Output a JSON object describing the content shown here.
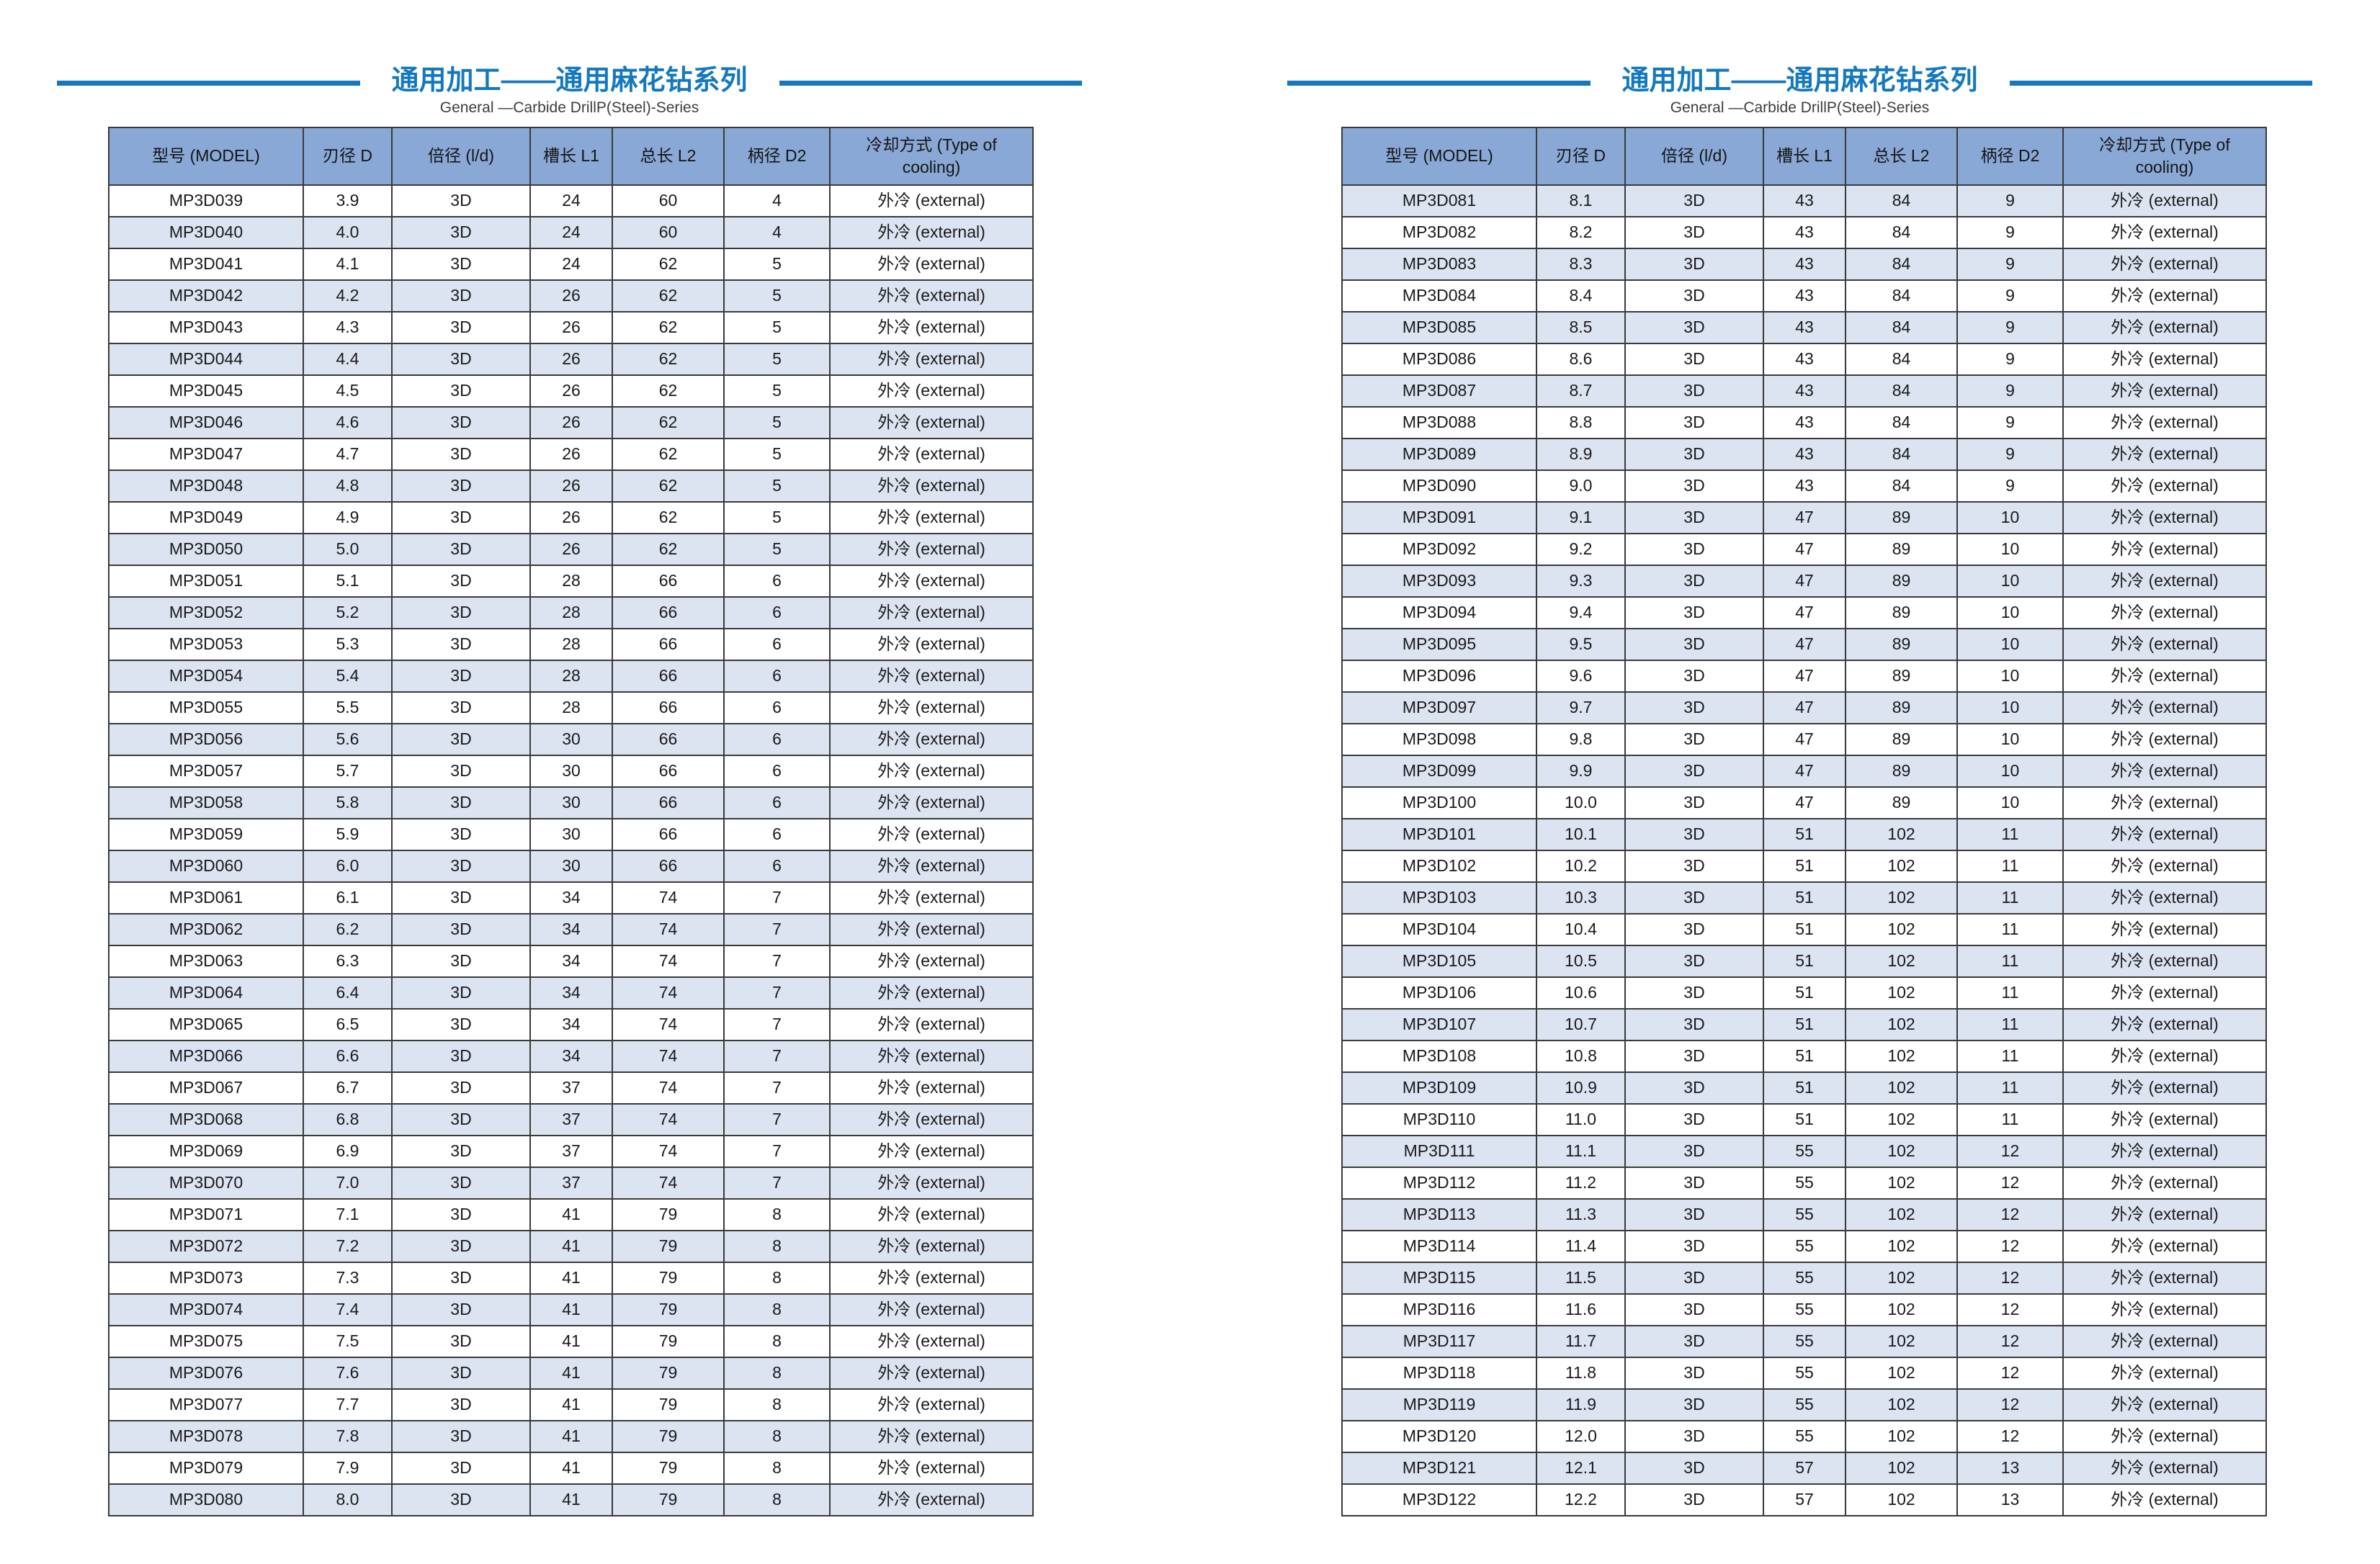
{
  "page": {
    "title": "通用加工——通用麻花钻系列",
    "subtitle": "General —Carbide DrillP(Steel)-Series"
  },
  "colors": {
    "accent_blue": "#1478BE",
    "header_fill": "#89A8D5",
    "stripe_fill": "#DCE3F1",
    "border": "#3a3a3a"
  },
  "table": {
    "headers": [
      "型号 (MODEL)",
      "刃径 D",
      "倍径 (l/d)",
      "槽长 L1",
      "总长 L2",
      "柄径 D2",
      "冷却方式 (Type of cooling)"
    ]
  },
  "left_table": {
    "first_row_shaded": false,
    "rows": [
      [
        "MP3D039",
        "3.9",
        "3D",
        "24",
        "60",
        "4",
        "外冷 (external)"
      ],
      [
        "MP3D040",
        "4.0",
        "3D",
        "24",
        "60",
        "4",
        "外冷 (external)"
      ],
      [
        "MP3D041",
        "4.1",
        "3D",
        "24",
        "62",
        "5",
        "外冷 (external)"
      ],
      [
        "MP3D042",
        "4.2",
        "3D",
        "26",
        "62",
        "5",
        "外冷 (external)"
      ],
      [
        "MP3D043",
        "4.3",
        "3D",
        "26",
        "62",
        "5",
        "外冷 (external)"
      ],
      [
        "MP3D044",
        "4.4",
        "3D",
        "26",
        "62",
        "5",
        "外冷 (external)"
      ],
      [
        "MP3D045",
        "4.5",
        "3D",
        "26",
        "62",
        "5",
        "外冷 (external)"
      ],
      [
        "MP3D046",
        "4.6",
        "3D",
        "26",
        "62",
        "5",
        "外冷 (external)"
      ],
      [
        "MP3D047",
        "4.7",
        "3D",
        "26",
        "62",
        "5",
        "外冷 (external)"
      ],
      [
        "MP3D048",
        "4.8",
        "3D",
        "26",
        "62",
        "5",
        "外冷 (external)"
      ],
      [
        "MP3D049",
        "4.9",
        "3D",
        "26",
        "62",
        "5",
        "外冷 (external)"
      ],
      [
        "MP3D050",
        "5.0",
        "3D",
        "26",
        "62",
        "5",
        "外冷 (external)"
      ],
      [
        "MP3D051",
        "5.1",
        "3D",
        "28",
        "66",
        "6",
        "外冷 (external)"
      ],
      [
        "MP3D052",
        "5.2",
        "3D",
        "28",
        "66",
        "6",
        "外冷 (external)"
      ],
      [
        "MP3D053",
        "5.3",
        "3D",
        "28",
        "66",
        "6",
        "外冷 (external)"
      ],
      [
        "MP3D054",
        "5.4",
        "3D",
        "28",
        "66",
        "6",
        "外冷 (external)"
      ],
      [
        "MP3D055",
        "5.5",
        "3D",
        "28",
        "66",
        "6",
        "外冷 (external)"
      ],
      [
        "MP3D056",
        "5.6",
        "3D",
        "30",
        "66",
        "6",
        "外冷 (external)"
      ],
      [
        "MP3D057",
        "5.7",
        "3D",
        "30",
        "66",
        "6",
        "外冷 (external)"
      ],
      [
        "MP3D058",
        "5.8",
        "3D",
        "30",
        "66",
        "6",
        "外冷 (external)"
      ],
      [
        "MP3D059",
        "5.9",
        "3D",
        "30",
        "66",
        "6",
        "外冷 (external)"
      ],
      [
        "MP3D060",
        "6.0",
        "3D",
        "30",
        "66",
        "6",
        "外冷 (external)"
      ],
      [
        "MP3D061",
        "6.1",
        "3D",
        "34",
        "74",
        "7",
        "外冷 (external)"
      ],
      [
        "MP3D062",
        "6.2",
        "3D",
        "34",
        "74",
        "7",
        "外冷 (external)"
      ],
      [
        "MP3D063",
        "6.3",
        "3D",
        "34",
        "74",
        "7",
        "外冷 (external)"
      ],
      [
        "MP3D064",
        "6.4",
        "3D",
        "34",
        "74",
        "7",
        "外冷 (external)"
      ],
      [
        "MP3D065",
        "6.5",
        "3D",
        "34",
        "74",
        "7",
        "外冷 (external)"
      ],
      [
        "MP3D066",
        "6.6",
        "3D",
        "34",
        "74",
        "7",
        "外冷 (external)"
      ],
      [
        "MP3D067",
        "6.7",
        "3D",
        "37",
        "74",
        "7",
        "外冷 (external)"
      ],
      [
        "MP3D068",
        "6.8",
        "3D",
        "37",
        "74",
        "7",
        "外冷 (external)"
      ],
      [
        "MP3D069",
        "6.9",
        "3D",
        "37",
        "74",
        "7",
        "外冷 (external)"
      ],
      [
        "MP3D070",
        "7.0",
        "3D",
        "37",
        "74",
        "7",
        "外冷 (external)"
      ],
      [
        "MP3D071",
        "7.1",
        "3D",
        "41",
        "79",
        "8",
        "外冷 (external)"
      ],
      [
        "MP3D072",
        "7.2",
        "3D",
        "41",
        "79",
        "8",
        "外冷 (external)"
      ],
      [
        "MP3D073",
        "7.3",
        "3D",
        "41",
        "79",
        "8",
        "外冷 (external)"
      ],
      [
        "MP3D074",
        "7.4",
        "3D",
        "41",
        "79",
        "8",
        "外冷 (external)"
      ],
      [
        "MP3D075",
        "7.5",
        "3D",
        "41",
        "79",
        "8",
        "外冷 (external)"
      ],
      [
        "MP3D076",
        "7.6",
        "3D",
        "41",
        "79",
        "8",
        "外冷 (external)"
      ],
      [
        "MP3D077",
        "7.7",
        "3D",
        "41",
        "79",
        "8",
        "外冷 (external)"
      ],
      [
        "MP3D078",
        "7.8",
        "3D",
        "41",
        "79",
        "8",
        "外冷 (external)"
      ],
      [
        "MP3D079",
        "7.9",
        "3D",
        "41",
        "79",
        "8",
        "外冷 (external)"
      ],
      [
        "MP3D080",
        "8.0",
        "3D",
        "41",
        "79",
        "8",
        "外冷 (external)"
      ]
    ]
  },
  "right_table": {
    "first_row_shaded": true,
    "rows": [
      [
        "MP3D081",
        "8.1",
        "3D",
        "43",
        "84",
        "9",
        "外冷 (external)"
      ],
      [
        "MP3D082",
        "8.2",
        "3D",
        "43",
        "84",
        "9",
        "外冷 (external)"
      ],
      [
        "MP3D083",
        "8.3",
        "3D",
        "43",
        "84",
        "9",
        "外冷 (external)"
      ],
      [
        "MP3D084",
        "8.4",
        "3D",
        "43",
        "84",
        "9",
        "外冷 (external)"
      ],
      [
        "MP3D085",
        "8.5",
        "3D",
        "43",
        "84",
        "9",
        "外冷 (external)"
      ],
      [
        "MP3D086",
        "8.6",
        "3D",
        "43",
        "84",
        "9",
        "外冷 (external)"
      ],
      [
        "MP3D087",
        "8.7",
        "3D",
        "43",
        "84",
        "9",
        "外冷 (external)"
      ],
      [
        "MP3D088",
        "8.8",
        "3D",
        "43",
        "84",
        "9",
        "外冷 (external)"
      ],
      [
        "MP3D089",
        "8.9",
        "3D",
        "43",
        "84",
        "9",
        "外冷 (external)"
      ],
      [
        "MP3D090",
        "9.0",
        "3D",
        "43",
        "84",
        "9",
        "外冷 (external)"
      ],
      [
        "MP3D091",
        "9.1",
        "3D",
        "47",
        "89",
        "10",
        "外冷 (external)"
      ],
      [
        "MP3D092",
        "9.2",
        "3D",
        "47",
        "89",
        "10",
        "外冷 (external)"
      ],
      [
        "MP3D093",
        "9.3",
        "3D",
        "47",
        "89",
        "10",
        "外冷 (external)"
      ],
      [
        "MP3D094",
        "9.4",
        "3D",
        "47",
        "89",
        "10",
        "外冷 (external)"
      ],
      [
        "MP3D095",
        "9.5",
        "3D",
        "47",
        "89",
        "10",
        "外冷 (external)"
      ],
      [
        "MP3D096",
        "9.6",
        "3D",
        "47",
        "89",
        "10",
        "外冷 (external)"
      ],
      [
        "MP3D097",
        "9.7",
        "3D",
        "47",
        "89",
        "10",
        "外冷 (external)"
      ],
      [
        "MP3D098",
        "9.8",
        "3D",
        "47",
        "89",
        "10",
        "外冷 (external)"
      ],
      [
        "MP3D099",
        "9.9",
        "3D",
        "47",
        "89",
        "10",
        "外冷 (external)"
      ],
      [
        "MP3D100",
        "10.0",
        "3D",
        "47",
        "89",
        "10",
        "外冷 (external)"
      ],
      [
        "MP3D101",
        "10.1",
        "3D",
        "51",
        "102",
        "11",
        "外冷 (external)"
      ],
      [
        "MP3D102",
        "10.2",
        "3D",
        "51",
        "102",
        "11",
        "外冷 (external)"
      ],
      [
        "MP3D103",
        "10.3",
        "3D",
        "51",
        "102",
        "11",
        "外冷 (external)"
      ],
      [
        "MP3D104",
        "10.4",
        "3D",
        "51",
        "102",
        "11",
        "外冷 (external)"
      ],
      [
        "MP3D105",
        "10.5",
        "3D",
        "51",
        "102",
        "11",
        "外冷 (external)"
      ],
      [
        "MP3D106",
        "10.6",
        "3D",
        "51",
        "102",
        "11",
        "外冷 (external)"
      ],
      [
        "MP3D107",
        "10.7",
        "3D",
        "51",
        "102",
        "11",
        "外冷 (external)"
      ],
      [
        "MP3D108",
        "10.8",
        "3D",
        "51",
        "102",
        "11",
        "外冷 (external)"
      ],
      [
        "MP3D109",
        "10.9",
        "3D",
        "51",
        "102",
        "11",
        "外冷 (external)"
      ],
      [
        "MP3D110",
        "11.0",
        "3D",
        "51",
        "102",
        "11",
        "外冷 (external)"
      ],
      [
        "MP3D111",
        "11.1",
        "3D",
        "55",
        "102",
        "12",
        "外冷 (external)"
      ],
      [
        "MP3D112",
        "11.2",
        "3D",
        "55",
        "102",
        "12",
        "外冷 (external)"
      ],
      [
        "MP3D113",
        "11.3",
        "3D",
        "55",
        "102",
        "12",
        "外冷 (external)"
      ],
      [
        "MP3D114",
        "11.4",
        "3D",
        "55",
        "102",
        "12",
        "外冷 (external)"
      ],
      [
        "MP3D115",
        "11.5",
        "3D",
        "55",
        "102",
        "12",
        "外冷 (external)"
      ],
      [
        "MP3D116",
        "11.6",
        "3D",
        "55",
        "102",
        "12",
        "外冷 (external)"
      ],
      [
        "MP3D117",
        "11.7",
        "3D",
        "55",
        "102",
        "12",
        "外冷 (external)"
      ],
      [
        "MP3D118",
        "11.8",
        "3D",
        "55",
        "102",
        "12",
        "外冷 (external)"
      ],
      [
        "MP3D119",
        "11.9",
        "3D",
        "55",
        "102",
        "12",
        "外冷 (external)"
      ],
      [
        "MP3D120",
        "12.0",
        "3D",
        "55",
        "102",
        "12",
        "外冷 (external)"
      ],
      [
        "MP3D121",
        "12.1",
        "3D",
        "57",
        "102",
        "13",
        "外冷 (external)"
      ],
      [
        "MP3D122",
        "12.2",
        "3D",
        "57",
        "102",
        "13",
        "外冷 (external)"
      ]
    ]
  }
}
